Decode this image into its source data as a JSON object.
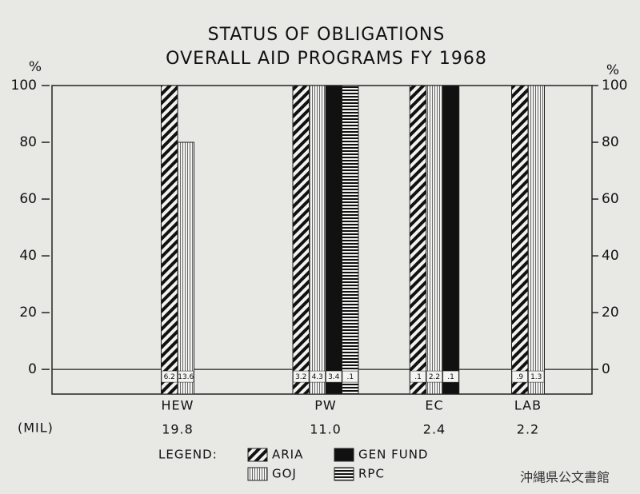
{
  "chart_data": {
    "type": "bar",
    "title": "STATUS OF OBLIGATIONS",
    "subtitle": "OVERALL AID PROGRAMS FY 1968",
    "ylabel": "%",
    "y2label": "%",
    "categories": [
      "HEW",
      "PW",
      "EC",
      "LAB"
    ],
    "totals_label": "(MIL)",
    "totals": [
      "19.8",
      "11.0",
      "2.4",
      "2.2"
    ],
    "series": [
      {
        "name": "ARIA",
        "color": "#111111",
        "pattern": "diagonal",
        "values": [
          100,
          100,
          100,
          100
        ],
        "amounts": [
          "6.2",
          "3.2",
          ".1",
          ".9"
        ]
      },
      {
        "name": "GOJ",
        "color": "#111111",
        "pattern": "vertical",
        "values": [
          80,
          100,
          100,
          100
        ],
        "amounts": [
          "13.6",
          "4.3",
          "2.2",
          "1.3"
        ]
      },
      {
        "name": "GEN FUND",
        "color": "#111111",
        "pattern": "solid",
        "values": [
          null,
          100,
          100,
          null
        ],
        "amounts": [
          null,
          "3.4",
          ".1",
          null
        ]
      },
      {
        "name": "RPC",
        "color": "#111111",
        "pattern": "horizontal",
        "values": [
          null,
          100,
          null,
          null
        ],
        "amounts": [
          null,
          ".1",
          null,
          null
        ]
      }
    ],
    "legend_title": "LEGEND:",
    "ylim": [
      -8.7,
      100
    ],
    "yticks": [
      0,
      20,
      40,
      60,
      80,
      100
    ],
    "y2lim": [
      -8.7,
      100
    ],
    "y2ticks": [
      0,
      20,
      40,
      60,
      80,
      100
    ],
    "grid": false
  },
  "stamp": "沖縄県公文書館"
}
